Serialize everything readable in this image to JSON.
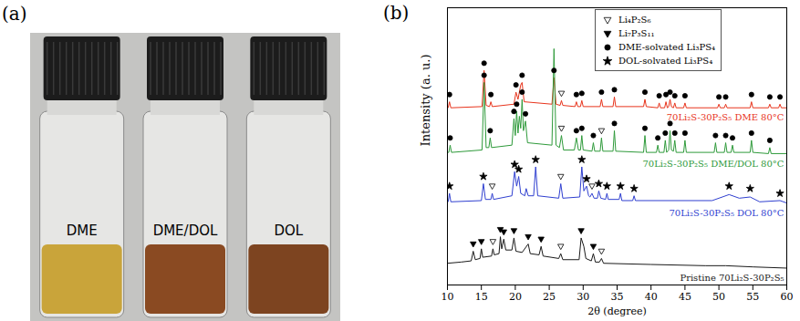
{
  "photo": {
    "label": "(a)",
    "vials": [
      {
        "label": "DME",
        "color": "#c9a43a"
      },
      {
        "label": "DME/DOL",
        "color": "#8a4a22"
      },
      {
        "label": "DOL",
        "color": "#7d4420"
      }
    ]
  },
  "chart_data": {
    "type": "line",
    "label": "(b)",
    "x_label": "2θ (degree)",
    "y_label": "Intensity (a. u.)",
    "xlim": [
      10,
      60
    ],
    "xticks": [
      10,
      15,
      20,
      25,
      30,
      35,
      40,
      45,
      50,
      55,
      60
    ],
    "ylim": [
      0,
      115
    ],
    "tick_labels": "x",
    "series": [
      {
        "name": "70Li₂S-30P₂S₅ DME 80°C",
        "color": "#e8341c",
        "x": [
          10,
          10.1,
          10.3,
          10.5,
          15.1,
          15.4,
          15.7,
          16.2,
          16.4,
          16.6,
          19.8,
          20.1,
          20.4,
          20.8,
          21.0,
          21.3,
          25.4,
          25.7,
          26.0,
          26.6,
          26.8,
          27.0,
          28.8,
          29.0,
          29.2,
          29.6,
          29.8,
          30.0,
          32.5,
          32.7,
          32.9,
          34.4,
          34.6,
          34.8,
          38.9,
          39.1,
          39.3,
          41.0,
          41.2,
          41.4,
          42.0,
          42.2,
          42.4,
          42.6,
          42.8,
          43.0,
          43.3,
          43.5,
          43.7,
          44.8,
          45.0,
          45.2,
          49.8,
          50.0,
          50.2,
          50.8,
          51.0,
          51.2,
          54.6,
          54.8,
          55.0,
          57.3,
          57.5,
          57.7,
          58.8,
          59.0,
          59.2,
          60
        ],
        "values": [
          73.5,
          73.5,
          76,
          73.5,
          74,
          89,
          74.5,
          74,
          76,
          74,
          75,
          80,
          77,
          83,
          84,
          76,
          75,
          86,
          75,
          74.5,
          76.5,
          74.5,
          74,
          76,
          74,
          74,
          76.5,
          74,
          74,
          77,
          74,
          74,
          78,
          74,
          74,
          77,
          74,
          73.5,
          75.5,
          73.5,
          73.5,
          76,
          73.5,
          74,
          77,
          74,
          73.5,
          75.5,
          73.5,
          73.5,
          75.5,
          73.5,
          73.5,
          75,
          73.5,
          73.5,
          75,
          73.5,
          73.5,
          76,
          73.5,
          73.5,
          75,
          73.5,
          73.5,
          75,
          73.5,
          73.5
        ]
      },
      {
        "name": "70Li₂S-30P₂S₅ DME/DOL 80°C",
        "color": "#2e9a3a",
        "x": [
          10,
          10.2,
          10.4,
          10.6,
          15.1,
          15.4,
          15.7,
          16.1,
          16.3,
          16.5,
          19.5,
          19.8,
          20.0,
          20.2,
          20.4,
          20.6,
          20.8,
          21.0,
          21.2,
          21.5,
          21.8,
          25.4,
          25.7,
          26.0,
          26.5,
          26.8,
          27.1,
          28.7,
          29.0,
          29.3,
          29.6,
          29.8,
          30.0,
          31.3,
          31.5,
          31.7,
          32.5,
          32.7,
          32.9,
          34.4,
          34.6,
          34.8,
          38.9,
          39.1,
          39.3,
          40.8,
          41.0,
          41.2,
          41.9,
          42.1,
          42.3,
          42.6,
          42.8,
          43.0,
          43.3,
          43.5,
          43.7,
          44.8,
          45.0,
          45.2,
          49.3,
          49.5,
          49.7,
          50.8,
          51.0,
          51.2,
          51.8,
          52.0,
          52.2,
          54.6,
          54.8,
          55.0,
          57.3,
          57.5,
          57.7,
          60
        ],
        "values": [
          55,
          55,
          58,
          55,
          56,
          84,
          57,
          57,
          61,
          57,
          58,
          69,
          62,
          72,
          63,
          70,
          65,
          77,
          64,
          68,
          59,
          58,
          98,
          58,
          57,
          62,
          56,
          56,
          61,
          56,
          56,
          62,
          56,
          55.5,
          59,
          55.5,
          55.5,
          61,
          55.5,
          55.5,
          64,
          55.5,
          55,
          62,
          55,
          55,
          58,
          55,
          55,
          60,
          55,
          56,
          64,
          56,
          55.5,
          60,
          55,
          55,
          60,
          55,
          55,
          59,
          55,
          55,
          59,
          55,
          55,
          58,
          55,
          55,
          60,
          55,
          54.5,
          57,
          54.5,
          54.5
        ]
      },
      {
        "name": "70Li₂S-30P₂S₅ DOL 80°C",
        "color": "#2f3fd0",
        "x": [
          10,
          10.1,
          10.3,
          10.5,
          15.0,
          15.3,
          15.6,
          16.4,
          16.6,
          16.8,
          19.5,
          19.9,
          20.2,
          20.5,
          20.8,
          21.4,
          21.6,
          21.9,
          22.7,
          23.0,
          23.3,
          26.4,
          26.7,
          27.0,
          29.5,
          29.8,
          30.1,
          30.5,
          30.8,
          31.0,
          31.3,
          31.6,
          32.1,
          32.3,
          32.6,
          33.3,
          33.5,
          33.7,
          35.3,
          35.5,
          35.7,
          37.3,
          37.5,
          37.7,
          49,
          51.5,
          53,
          54.6,
          56,
          59,
          60
        ],
        "values": [
          34.5,
          34.5,
          38,
          34.5,
          35,
          42,
          35.5,
          35.5,
          38,
          35.5,
          37,
          47,
          41,
          45,
          38,
          37,
          40,
          37,
          37,
          49,
          37,
          36,
          42,
          36,
          36.5,
          49,
          39,
          41,
          37,
          36.5,
          38,
          36,
          36,
          39,
          36,
          35.5,
          38,
          35.5,
          35.5,
          38,
          35,
          35,
          37,
          35,
          35,
          37.5,
          36,
          36.5,
          34.5,
          35,
          34
        ]
      },
      {
        "name": "Pristine 70Li₂S-30P₂S₅",
        "color": "#1a1a1a",
        "x": [
          10,
          12,
          13.5,
          13.8,
          14.1,
          14.8,
          15.0,
          15.2,
          16.5,
          16.7,
          16.9,
          17.6,
          17.8,
          18.0,
          18.3,
          18.6,
          19.5,
          19.8,
          20.1,
          21,
          21.9,
          22.2,
          23.5,
          23.8,
          24.1,
          26.4,
          26.7,
          27,
          29.4,
          29.7,
          30.1,
          30.4,
          31.2,
          31.5,
          31.8,
          32.4,
          32.7,
          33,
          40,
          48,
          51,
          55,
          60
        ],
        "values": [
          9.0,
          9.5,
          10,
          14,
          10.5,
          11,
          15,
          11.5,
          12,
          15,
          12.5,
          13,
          20,
          15,
          19,
          14.5,
          14.5,
          19.5,
          14,
          13.5,
          17,
          13,
          12.5,
          16,
          12,
          11,
          13,
          10.5,
          10.5,
          19.5,
          16,
          11,
          10,
          13,
          9.5,
          9.5,
          11,
          9,
          8.5,
          8,
          8,
          7.5,
          7
        ]
      }
    ],
    "phases": [
      {
        "name": "Li₄P₂S₆",
        "marker": "triangle-down-open",
        "color": "#000000",
        "x": [
          16.7,
          26.7,
          32.7,
          16.6,
          26.7,
          31.3,
          26.8,
          32.7,
          26.8
        ],
        "y": [
          18,
          16,
          14,
          41,
          45,
          41,
          65,
          64,
          79.5
        ]
      },
      {
        "name": "Li₇P₃S₁₁",
        "marker": "triangle-down",
        "color": "#000000",
        "x": [
          13.8,
          15.0,
          17.8,
          18.3,
          19.8,
          21.9,
          23.8,
          29.7,
          31.5
        ],
        "y": [
          17,
          18,
          23,
          22,
          22.5,
          20,
          19,
          22.5,
          16
        ]
      },
      {
        "name": "DME-solvated Li₃PS₄",
        "marker": "circle",
        "color": "#000000",
        "x": [
          10.4,
          15.4,
          16.3,
          19.8,
          20.2,
          21.0,
          21.5,
          29.0,
          29.8,
          31.5,
          34.6,
          39.1,
          41.0,
          42.1,
          42.8,
          43.5,
          45.0,
          49.5,
          51.0,
          52.0,
          54.8,
          57.5,
          10.3,
          15.4,
          16.4,
          20.1,
          21.0,
          25.7,
          29.0,
          29.8,
          32.7,
          34.6,
          39.1,
          41.2,
          42.2,
          42.8,
          43.5,
          45.0,
          50.0,
          51.0,
          54.8,
          57.5,
          59.0
        ],
        "y": [
          61,
          87,
          64,
          72,
          75,
          80,
          71,
          64,
          65,
          62,
          67,
          65,
          61,
          63,
          67,
          63,
          63,
          62,
          62,
          61,
          63,
          60,
          79,
          92,
          79,
          83,
          87,
          89,
          79,
          79.5,
          80,
          81,
          80,
          78.5,
          79,
          80,
          78.5,
          78.5,
          78,
          78,
          79,
          78,
          78
        ]
      },
      {
        "name": "DOL-solvated Li₃PS₄",
        "marker": "star",
        "color": "#000000",
        "x": [
          10.3,
          15.3,
          19.9,
          20.5,
          23.0,
          29.8,
          30.5,
          32.3,
          33.5,
          35.5,
          37.5,
          51.5,
          54.6,
          59
        ],
        "y": [
          41,
          45,
          50,
          48,
          52,
          52,
          44,
          42,
          41,
          41,
          40,
          41,
          40,
          38
        ]
      }
    ]
  }
}
